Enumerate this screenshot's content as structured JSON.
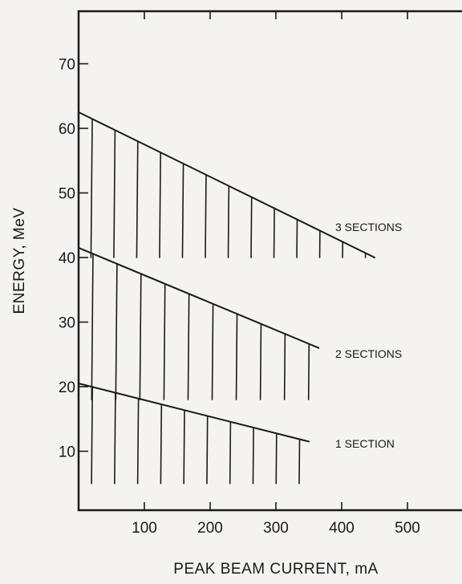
{
  "chart_data": {
    "type": "area",
    "title": "",
    "xlabel": "PEAK BEAM CURRENT, mA",
    "ylabel": "ENERGY, MeV",
    "xlim": [
      0,
      600
    ],
    "ylim": [
      0,
      80
    ],
    "xticks": [
      100,
      200,
      300,
      400,
      500
    ],
    "xtick_labels": [
      "100",
      "200",
      "300",
      "400",
      "500"
    ],
    "yticks": [
      10,
      20,
      30,
      40,
      50,
      60,
      70
    ],
    "ytick_labels": [
      "10",
      "20",
      "30",
      "40",
      "50",
      "60",
      "70"
    ],
    "grid": false,
    "legend": "none",
    "fill_style": "diagonal-hatch",
    "series": [
      {
        "label": "1  SECTION",
        "boundary": {
          "x": [
            0,
            350
          ],
          "y": [
            20.5,
            11.5
          ]
        }
      },
      {
        "label": "2  SECTIONS",
        "boundary": {
          "x": [
            0,
            365
          ],
          "y": [
            41.5,
            26
          ]
        }
      },
      {
        "label": "3  SECTIONS",
        "boundary": {
          "x": [
            0,
            450
          ],
          "y": [
            62.5,
            40
          ]
        }
      }
    ],
    "colors": {
      "ink": "#1a1a1a",
      "paper": "#f4f3ef"
    }
  }
}
